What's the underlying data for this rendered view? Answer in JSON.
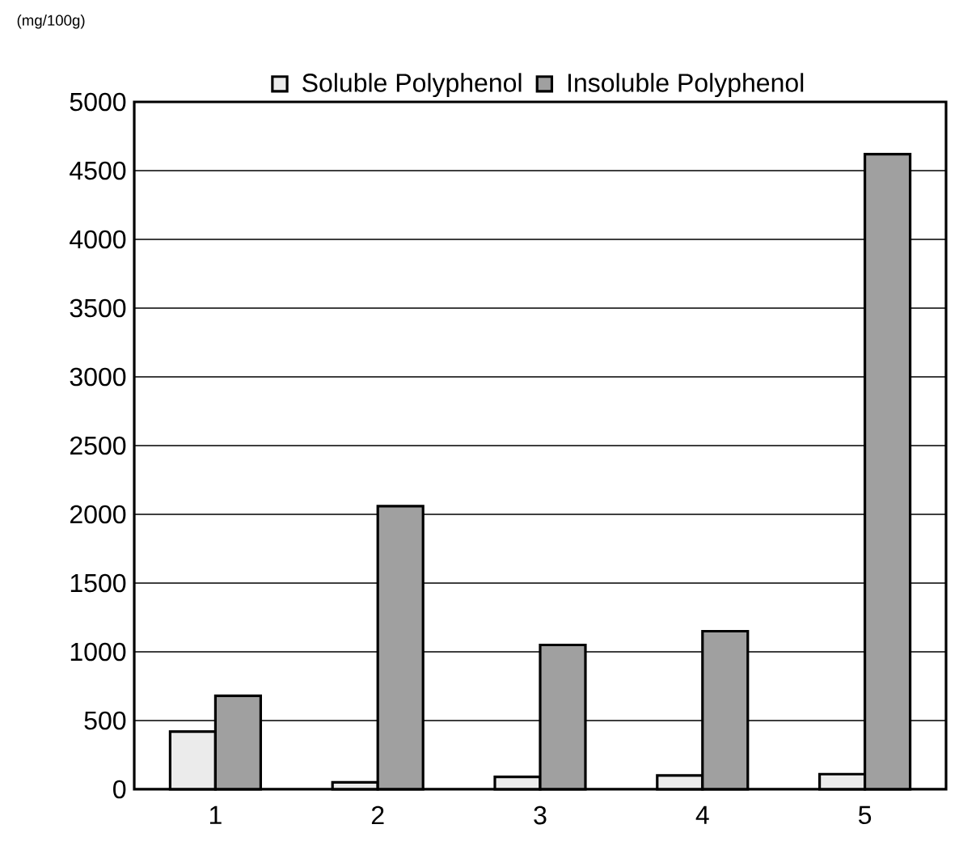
{
  "chart_data": {
    "type": "bar",
    "ylabel": "(mg/100g)",
    "categories": [
      "1",
      "2",
      "3",
      "4",
      "5"
    ],
    "series": [
      {
        "name": "Soluble Polyphenol",
        "color": "#ebebeb",
        "values": [
          420,
          50,
          90,
          100,
          110
        ]
      },
      {
        "name": "Insoluble Polyphenol",
        "color": "#a0a0a0",
        "values": [
          680,
          2060,
          1050,
          1150,
          4620
        ]
      }
    ],
    "ylim": [
      0,
      5000
    ],
    "yticks": [
      0,
      500,
      1000,
      1500,
      2000,
      2500,
      3000,
      3500,
      4000,
      4500,
      5000
    ],
    "grid": "y",
    "legend": "top"
  }
}
